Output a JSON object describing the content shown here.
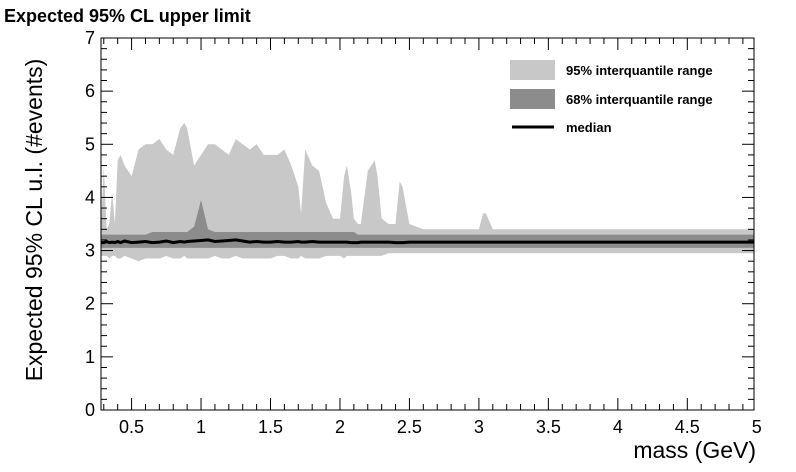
{
  "chart_data": {
    "type": "area",
    "title": "Expected 95% CL upper limit",
    "xlabel": "mass (GeV)",
    "ylabel": "Expected 95% CL u.l. (#events)",
    "xlim": [
      0.28,
      4.98
    ],
    "ylim": [
      0,
      7
    ],
    "x_ticks": [
      "0.5",
      "1",
      "1.5",
      "2",
      "2.5",
      "3",
      "3.5",
      "4",
      "4.5",
      "5"
    ],
    "y_ticks": [
      "0",
      "1",
      "2",
      "3",
      "4",
      "5",
      "6",
      "7"
    ],
    "grid": false,
    "legend_position": "top-right",
    "legend": [
      {
        "name": "95% interquantile range",
        "color": "#c8c8c8"
      },
      {
        "name": "68% interquantile range",
        "color": "#8c8c8c"
      },
      {
        "name": "median",
        "color": "#000000"
      }
    ],
    "x": [
      0.28,
      0.3,
      0.32,
      0.34,
      0.36,
      0.38,
      0.4,
      0.42,
      0.45,
      0.5,
      0.55,
      0.6,
      0.65,
      0.7,
      0.75,
      0.8,
      0.85,
      0.88,
      0.9,
      0.95,
      1.0,
      1.05,
      1.1,
      1.15,
      1.2,
      1.25,
      1.3,
      1.35,
      1.4,
      1.45,
      1.5,
      1.55,
      1.6,
      1.65,
      1.7,
      1.72,
      1.75,
      1.8,
      1.85,
      1.9,
      1.95,
      2.0,
      2.03,
      2.05,
      2.08,
      2.1,
      2.13,
      2.15,
      2.2,
      2.25,
      2.27,
      2.3,
      2.35,
      2.4,
      2.43,
      2.45,
      2.5,
      2.6,
      2.7,
      2.8,
      2.9,
      3.0,
      3.03,
      3.05,
      3.1,
      3.5,
      4.0,
      4.5,
      4.98
    ],
    "series": [
      {
        "name": "95% interquantile range",
        "upper": [
          3.4,
          4.6,
          3.4,
          3.5,
          4.1,
          3.5,
          4.7,
          4.8,
          4.6,
          4.4,
          4.9,
          5.0,
          5.0,
          5.1,
          4.9,
          4.8,
          5.3,
          5.4,
          5.3,
          4.6,
          4.8,
          5.0,
          5.0,
          4.9,
          4.8,
          5.1,
          5.0,
          4.9,
          5.0,
          4.8,
          4.8,
          4.8,
          4.9,
          4.6,
          4.2,
          3.7,
          4.9,
          4.6,
          4.5,
          3.9,
          3.6,
          3.6,
          4.4,
          4.6,
          4.1,
          3.6,
          3.5,
          3.5,
          4.5,
          4.7,
          4.4,
          3.6,
          3.5,
          3.5,
          4.3,
          4.2,
          3.5,
          3.4,
          3.4,
          3.4,
          3.4,
          3.4,
          3.7,
          3.7,
          3.4,
          3.4,
          3.4,
          3.4,
          3.4
        ],
        "lower": [
          2.9,
          2.9,
          2.9,
          2.85,
          2.9,
          2.9,
          2.85,
          2.85,
          2.9,
          2.85,
          2.8,
          2.85,
          2.85,
          2.85,
          2.9,
          2.85,
          2.85,
          2.9,
          2.85,
          2.85,
          2.85,
          2.85,
          2.9,
          2.85,
          2.85,
          2.9,
          2.85,
          2.85,
          2.85,
          2.85,
          2.85,
          2.9,
          2.9,
          2.85,
          2.85,
          2.9,
          2.85,
          2.85,
          2.85,
          2.9,
          2.9,
          2.9,
          2.85,
          2.9,
          2.9,
          2.9,
          2.9,
          2.9,
          2.9,
          2.9,
          2.9,
          2.9,
          2.95,
          2.95,
          2.95,
          2.95,
          2.95,
          2.95,
          2.95,
          2.95,
          2.95,
          2.95,
          2.95,
          2.95,
          2.95,
          2.95,
          2.95,
          2.95,
          2.95
        ]
      },
      {
        "name": "68% interquantile range",
        "upper": [
          3.3,
          3.3,
          3.3,
          3.3,
          3.3,
          3.3,
          3.3,
          3.3,
          3.3,
          3.3,
          3.3,
          3.3,
          3.35,
          3.35,
          3.35,
          3.35,
          3.35,
          3.35,
          3.35,
          3.45,
          3.95,
          3.4,
          3.35,
          3.35,
          3.35,
          3.35,
          3.35,
          3.35,
          3.35,
          3.35,
          3.35,
          3.35,
          3.35,
          3.35,
          3.35,
          3.35,
          3.35,
          3.35,
          3.35,
          3.35,
          3.35,
          3.35,
          3.35,
          3.35,
          3.35,
          3.35,
          3.3,
          3.3,
          3.3,
          3.3,
          3.3,
          3.3,
          3.3,
          3.3,
          3.3,
          3.3,
          3.3,
          3.3,
          3.3,
          3.3,
          3.3,
          3.3,
          3.3,
          3.3,
          3.3,
          3.3,
          3.3,
          3.3,
          3.3
        ],
        "lower": [
          3.05,
          3.05,
          3.05,
          3.05,
          3.05,
          3.05,
          3.05,
          3.05,
          3.05,
          3.05,
          3.05,
          3.05,
          3.05,
          3.05,
          3.05,
          3.05,
          3.05,
          3.05,
          3.05,
          3.05,
          3.05,
          3.05,
          3.05,
          3.05,
          3.05,
          3.05,
          3.05,
          3.05,
          3.05,
          3.05,
          3.05,
          3.05,
          3.05,
          3.05,
          3.05,
          3.05,
          3.05,
          3.05,
          3.05,
          3.05,
          3.05,
          3.05,
          3.05,
          3.05,
          3.05,
          3.05,
          3.05,
          3.05,
          3.05,
          3.05,
          3.05,
          3.05,
          3.05,
          3.05,
          3.05,
          3.05,
          3.05,
          3.05,
          3.05,
          3.05,
          3.05,
          3.05,
          3.05,
          3.05,
          3.05,
          3.05,
          3.05,
          3.05,
          3.05
        ]
      },
      {
        "name": "median",
        "values": [
          3.15,
          3.15,
          3.17,
          3.15,
          3.16,
          3.15,
          3.17,
          3.15,
          3.18,
          3.15,
          3.16,
          3.17,
          3.15,
          3.16,
          3.18,
          3.15,
          3.17,
          3.16,
          3.17,
          3.18,
          3.19,
          3.2,
          3.17,
          3.18,
          3.19,
          3.2,
          3.18,
          3.16,
          3.17,
          3.16,
          3.16,
          3.17,
          3.16,
          3.16,
          3.17,
          3.16,
          3.16,
          3.17,
          3.16,
          3.16,
          3.16,
          3.16,
          3.16,
          3.16,
          3.15,
          3.15,
          3.15,
          3.16,
          3.16,
          3.16,
          3.16,
          3.16,
          3.16,
          3.15,
          3.15,
          3.15,
          3.16,
          3.16,
          3.16,
          3.16,
          3.16,
          3.16,
          3.16,
          3.16,
          3.16,
          3.16,
          3.16,
          3.16,
          3.16
        ]
      }
    ]
  }
}
